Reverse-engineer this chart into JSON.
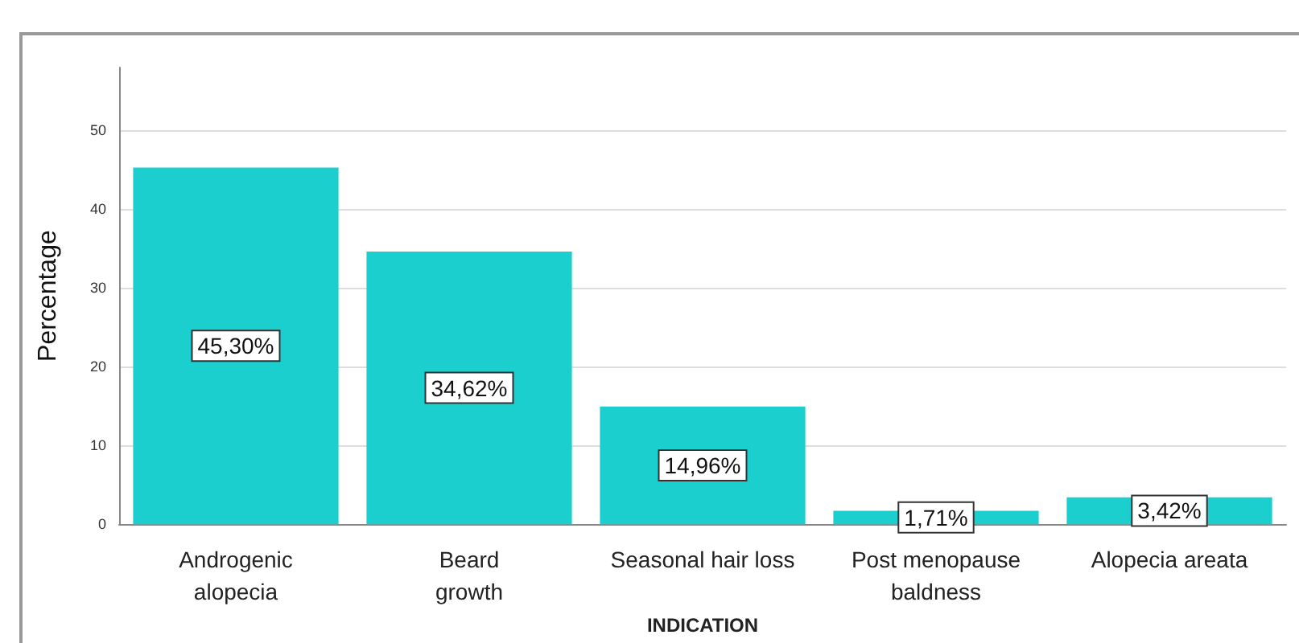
{
  "chart_data": {
    "type": "bar",
    "xlabel": "INDICATION",
    "ylabel": "Percentage",
    "categories": [
      "Androgenic\nalopecia",
      "Beard\ngrowth",
      "Seasonal hair loss",
      "Post menopause\nbaldness",
      "Alopecia areata"
    ],
    "values": [
      45.3,
      34.62,
      14.96,
      1.71,
      3.42
    ],
    "color": "#1ccfcf",
    "value_labels": [
      "45,30%",
      "34,62%",
      "14,96%",
      "1,71%",
      "3,42%"
    ],
    "ylim": [
      0,
      58
    ],
    "yticks": [
      0,
      10,
      20,
      30,
      40,
      50
    ],
    "grid": "y"
  }
}
